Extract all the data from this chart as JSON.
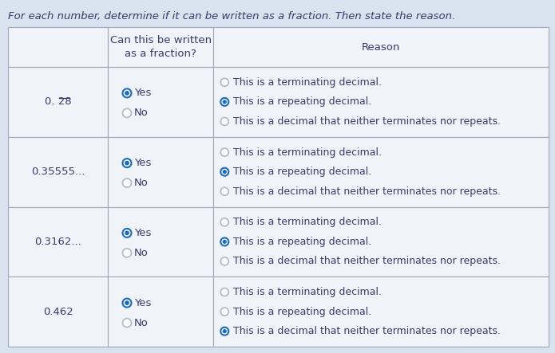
{
  "title": "For each number, determine if it can be written as a fraction. Then state the reason.",
  "header_col2": "Can this be written\nas a fraction?",
  "header_col3": "Reason",
  "rows": [
    {
      "number": "0.̅  28",
      "number_display": "0. 28",
      "number_overline": true,
      "yes_selected": true,
      "no_selected": false,
      "reason_selected": 1,
      "reasons": [
        "This is a terminating decimal.",
        "This is a repeating decimal.",
        "This is a decimal that neither terminates nor repeats."
      ]
    },
    {
      "number": "0.35555...",
      "number_display": "0.35555...",
      "number_overline": false,
      "yes_selected": true,
      "no_selected": false,
      "reason_selected": 1,
      "reasons": [
        "This is a terminating decimal.",
        "This is a repeating decimal.",
        "This is a decimal that neither terminates nor repeats."
      ]
    },
    {
      "number": "0.3162...",
      "number_display": "0.3162...",
      "number_overline": false,
      "yes_selected": true,
      "no_selected": false,
      "reason_selected": 1,
      "reasons": [
        "This is a terminating decimal.",
        "This is a repeating decimal.",
        "This is a decimal that neither terminates nor repeats."
      ]
    },
    {
      "number": "0.462",
      "number_display": "0.462",
      "number_overline": false,
      "yes_selected": true,
      "no_selected": false,
      "reason_selected": 2,
      "reasons": [
        "This is a terminating decimal.",
        "This is a repeating decimal.",
        "This is a decimal that neither terminates nor repeats."
      ]
    }
  ],
  "bg_color": "#d9e2ef",
  "cell_bg": "#f0f4f9",
  "header_bg": "#f0f4f9",
  "text_color": "#3a3a6a",
  "selected_color": "#1a6bbf",
  "unselected_color": "#b0b8c8",
  "border_color": "#a0a8b8",
  "font_size": 9.5,
  "title_font_size": 9.5,
  "fig_width": 6.95,
  "fig_height": 4.43,
  "dpi": 100
}
